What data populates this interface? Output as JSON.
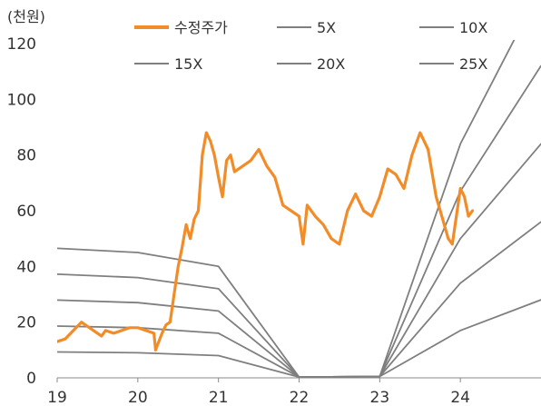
{
  "chart_data": {
    "type": "line",
    "unit_label": "(천원)",
    "xlim": [
      19,
      25
    ],
    "ylim": [
      0,
      120
    ],
    "x_ticks": [
      "19",
      "20",
      "21",
      "22",
      "23",
      "24"
    ],
    "y_ticks": [
      "0",
      "20",
      "40",
      "60",
      "80",
      "100",
      "120"
    ],
    "grid": false,
    "legend": "top",
    "colors": {
      "price": "#f28c28",
      "band": "#7f7f7f"
    },
    "series": [
      {
        "name": "수정주가",
        "kind": "price",
        "x": [
          19.0,
          19.1,
          19.2,
          19.3,
          19.4,
          19.5,
          19.55,
          19.6,
          19.7,
          19.8,
          19.9,
          20.0,
          20.1,
          20.2,
          20.22,
          20.3,
          20.35,
          20.4,
          20.45,
          20.5,
          20.55,
          20.6,
          20.65,
          20.7,
          20.75,
          20.8,
          20.85,
          20.9,
          20.95,
          21.0,
          21.05,
          21.1,
          21.15,
          21.2,
          21.3,
          21.4,
          21.5,
          21.6,
          21.7,
          21.8,
          21.9,
          22.0,
          22.05,
          22.1,
          22.2,
          22.3,
          22.4,
          22.5,
          22.6,
          22.7,
          22.8,
          22.9,
          23.0,
          23.1,
          23.2,
          23.3,
          23.4,
          23.5,
          23.6,
          23.7,
          23.75,
          23.8,
          23.85,
          23.9,
          24.0,
          24.05,
          24.1,
          24.15
        ],
        "values": [
          13,
          14,
          17,
          20,
          18,
          16,
          15,
          17,
          16,
          17,
          18,
          18,
          17,
          16,
          10,
          16,
          19,
          20,
          30,
          40,
          47,
          55,
          50,
          57,
          60,
          80,
          88,
          85,
          80,
          72,
          65,
          78,
          80,
          74,
          76,
          78,
          82,
          76,
          72,
          62,
          60,
          58,
          48,
          62,
          58,
          55,
          50,
          48,
          60,
          66,
          60,
          58,
          65,
          75,
          73,
          68,
          80,
          88,
          82,
          65,
          60,
          55,
          50,
          48,
          68,
          65,
          58,
          60
        ]
      },
      {
        "name": "5X",
        "kind": "band",
        "x": [
          19,
          20,
          21,
          22,
          23,
          24,
          25
        ],
        "values": [
          9.3,
          9.0,
          8.0,
          0.3,
          0.5,
          17,
          28
        ]
      },
      {
        "name": "10X",
        "kind": "band",
        "x": [
          19,
          20,
          21,
          22,
          23,
          24,
          25
        ],
        "values": [
          18.6,
          18.0,
          16.0,
          0.3,
          0.5,
          34,
          56
        ]
      },
      {
        "name": "15X",
        "kind": "band",
        "x": [
          19,
          20,
          21,
          22,
          23,
          24,
          25
        ],
        "values": [
          27.9,
          27.0,
          24.0,
          0.3,
          0.5,
          50,
          84
        ]
      },
      {
        "name": "20X",
        "kind": "band",
        "x": [
          19,
          20,
          21,
          22,
          23,
          24,
          25
        ],
        "values": [
          37.2,
          36.0,
          32.0,
          0.3,
          0.5,
          67,
          112
        ]
      },
      {
        "name": "25X",
        "kind": "band",
        "x": [
          19,
          20,
          21,
          22,
          23,
          24,
          25
        ],
        "values": [
          46.5,
          45.0,
          40.0,
          0.3,
          0.5,
          84,
          140
        ]
      }
    ]
  }
}
